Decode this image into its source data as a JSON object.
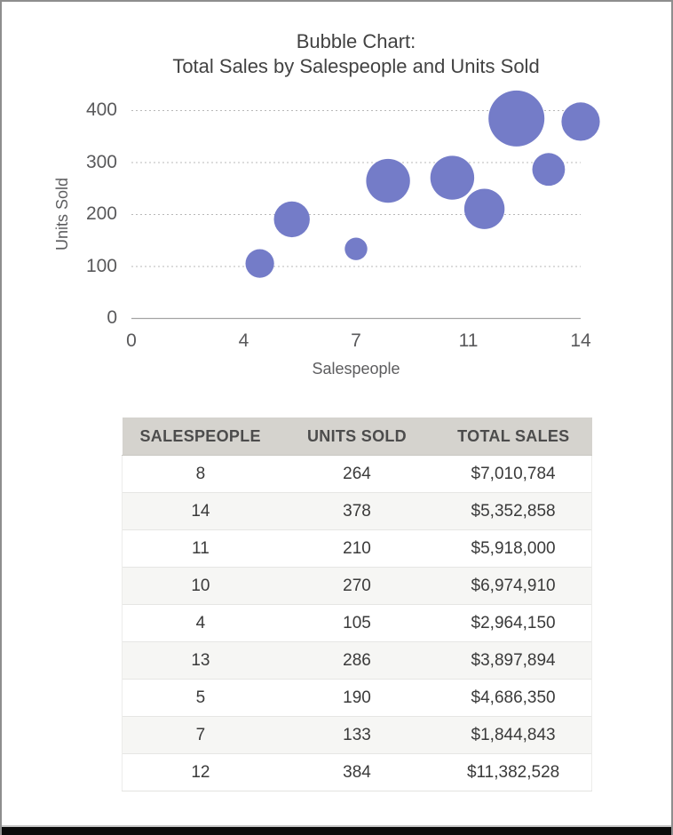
{
  "chart_data": {
    "type": "scatter",
    "subtype": "bubble",
    "title_lines": [
      "Bubble Chart:",
      "Total Sales by Salespeople and Units Sold"
    ],
    "title": "Bubble Chart: Total Sales by Salespeople and Units Sold",
    "xlabel": "Salespeople",
    "ylabel": "Units Sold",
    "xlim": [
      0,
      14
    ],
    "ylim": [
      0,
      400
    ],
    "x_ticks": [
      {
        "value": 0,
        "label": "0"
      },
      {
        "value": 3.5,
        "label": "4"
      },
      {
        "value": 7,
        "label": "7"
      },
      {
        "value": 10.5,
        "label": "11"
      },
      {
        "value": 14,
        "label": "14"
      }
    ],
    "y_ticks": [
      {
        "value": 0,
        "label": "0"
      },
      {
        "value": 100,
        "label": "100"
      },
      {
        "value": 200,
        "label": "200"
      },
      {
        "value": 300,
        "label": "300"
      },
      {
        "value": 400,
        "label": "400"
      }
    ],
    "grid": "horizontal-dotted",
    "legend": false,
    "bubble_color": "#747CC8",
    "size_encodes": "total_sales",
    "points": [
      {
        "salespeople": 8,
        "units_sold": 264,
        "total_sales": 7010784
      },
      {
        "salespeople": 14,
        "units_sold": 378,
        "total_sales": 5352858
      },
      {
        "salespeople": 11,
        "units_sold": 210,
        "total_sales": 5918000
      },
      {
        "salespeople": 10,
        "units_sold": 270,
        "total_sales": 6974910
      },
      {
        "salespeople": 4,
        "units_sold": 105,
        "total_sales": 2964150
      },
      {
        "salespeople": 13,
        "units_sold": 286,
        "total_sales": 3897894
      },
      {
        "salespeople": 5,
        "units_sold": 190,
        "total_sales": 4686350
      },
      {
        "salespeople": 7,
        "units_sold": 133,
        "total_sales": 1844843
      },
      {
        "salespeople": 12,
        "units_sold": 384,
        "total_sales": 11382528
      }
    ]
  },
  "table": {
    "columns": [
      "SALESPEOPLE",
      "UNITS SOLD",
      "TOTAL SALES"
    ],
    "rows": [
      [
        "8",
        "264",
        "$7,010,784"
      ],
      [
        "14",
        "378",
        "$5,352,858"
      ],
      [
        "11",
        "210",
        "$5,918,000"
      ],
      [
        "10",
        "270",
        "$6,974,910"
      ],
      [
        "4",
        "105",
        "$2,964,150"
      ],
      [
        "13",
        "286",
        "$3,897,894"
      ],
      [
        "5",
        "190",
        "$4,686,350"
      ],
      [
        "7",
        "133",
        "$1,844,843"
      ],
      [
        "12",
        "384",
        "$11,382,528"
      ]
    ]
  },
  "colors": {
    "bubble": "#747CC8",
    "gridline": "#b8b8b8",
    "axis_line": "#a3a3a3",
    "title_text": "#424242",
    "tick_text": "#59595b",
    "table_header_bg": "#d5d3ce",
    "table_header_text": "#4c4c4c",
    "table_row_alt_bg": "#f6f6f4",
    "frame_border": "#8e8e8e",
    "frame_bottom_bar": "#0b0b0b"
  }
}
